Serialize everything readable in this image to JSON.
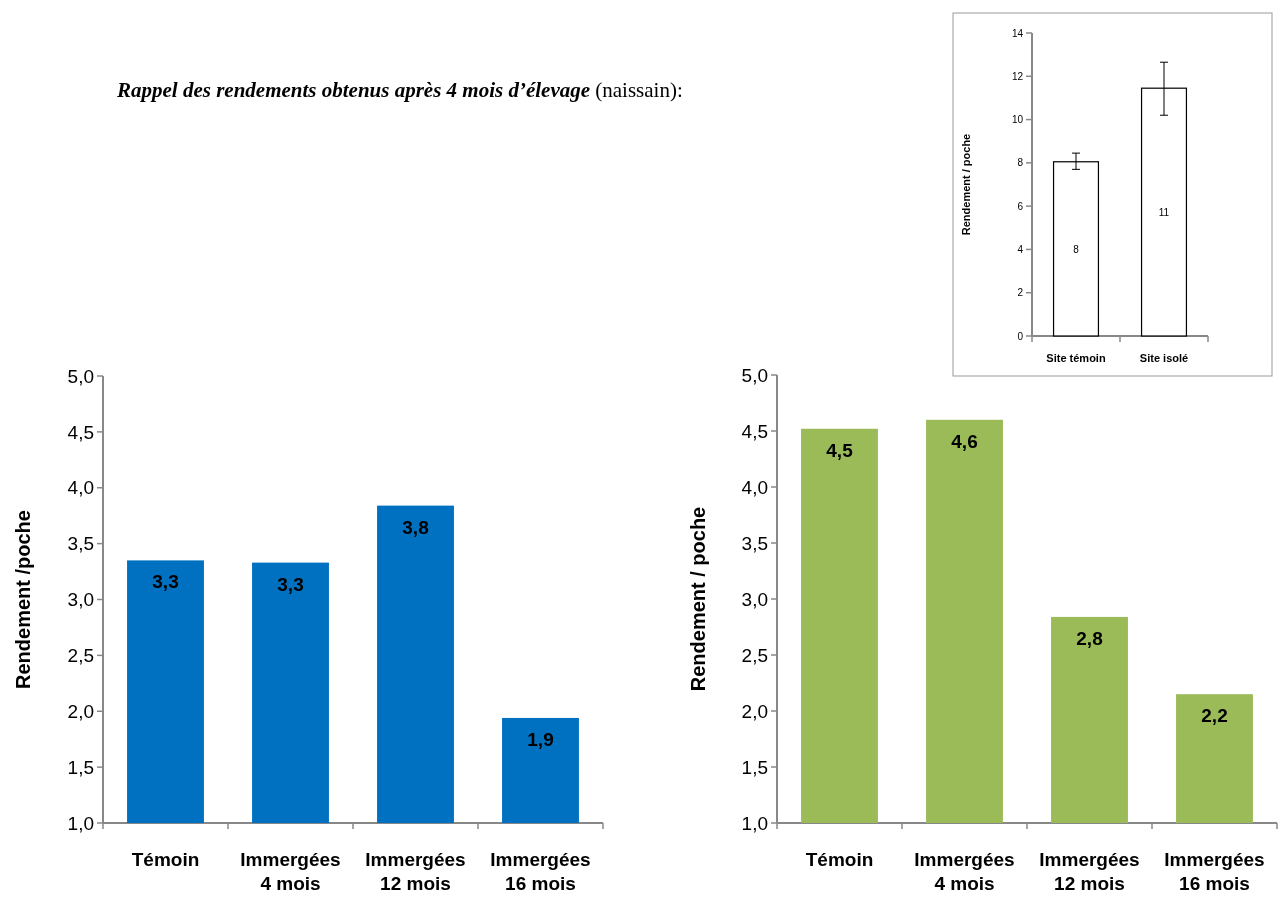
{
  "chart_data": [
    {
      "type": "other",
      "title": "Rappel des rendements obtenus après 4 mois d’élevage",
      "subtitle": "(naissain):"
    },
    {
      "type": "bar",
      "categories": [
        "Site témoin",
        "Site isolé"
      ],
      "values": [
        8.05,
        11.45
      ],
      "errors": [
        [
          7.7,
          8.45
        ],
        [
          10.2,
          12.65
        ]
      ],
      "value_labels": [
        "8",
        "11"
      ],
      "color": "#ffffff",
      "ylabel": "Rendement / poche",
      "ylim": [
        0,
        14
      ],
      "yticks": [
        0,
        2,
        4,
        6,
        8,
        10,
        12,
        14
      ]
    },
    {
      "type": "bar",
      "categories": [
        "Témoin",
        "Immergées 4 mois",
        "Immergées 12 mois",
        "Immergées 16 mois"
      ],
      "values": [
        3.35,
        3.33,
        3.84,
        1.94
      ],
      "value_labels": [
        "3,3",
        "3,3",
        "3,8",
        "1,9"
      ],
      "color": "#0070c0",
      "ylabel": "Rendement /poche",
      "ylim": [
        1,
        5
      ],
      "yticks": [
        {
          "value": 1,
          "label": "1,0"
        },
        {
          "value": 1.5,
          "label": "1,5"
        },
        {
          "value": 2,
          "label": "2,0"
        },
        {
          "value": 2.5,
          "label": "2,5"
        },
        {
          "value": 3,
          "label": "3,0"
        },
        {
          "value": 3.5,
          "label": "3,5"
        },
        {
          "value": 4,
          "label": "4,0"
        },
        {
          "value": 4.5,
          "label": "4,5"
        },
        {
          "value": 5,
          "label": "5,0"
        }
      ]
    },
    {
      "type": "bar",
      "categories": [
        "Témoin",
        "Immergées 4 mois",
        "Immergées 12 mois",
        "Immergées 16 mois"
      ],
      "values": [
        4.52,
        4.6,
        2.84,
        2.15
      ],
      "value_labels": [
        "4,5",
        "4,6",
        "2,8",
        "2,2"
      ],
      "color": "#9bbb59",
      "ylabel": "Rendement / poche",
      "ylim": [
        1,
        5
      ],
      "yticks": [
        {
          "value": 1,
          "label": "1,0"
        },
        {
          "value": 1.5,
          "label": "1,5"
        },
        {
          "value": 2,
          "label": "2,0"
        },
        {
          "value": 2.5,
          "label": "2,5"
        },
        {
          "value": 3,
          "label": "3,0"
        },
        {
          "value": 3.5,
          "label": "3,5"
        },
        {
          "value": 4,
          "label": "4,0"
        },
        {
          "value": 4.5,
          "label": "4,5"
        },
        {
          "value": 5,
          "label": "5,0"
        }
      ]
    }
  ]
}
